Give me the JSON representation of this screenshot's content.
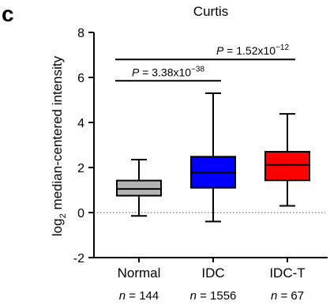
{
  "panel_label": "c",
  "chart_data": {
    "type": "box",
    "title": "Curtis",
    "ylabel_prefix": "log",
    "ylabel_sub": "2",
    "ylabel_rest": " median-centered intensity",
    "xlabel": "",
    "ylim": [
      -2,
      8
    ],
    "yticks": [
      "-2",
      "0",
      "2",
      "4",
      "6",
      "8"
    ],
    "reference_line": 0,
    "categories": [
      "Normal",
      "IDC",
      "IDC-T"
    ],
    "n_labels": [
      "n = 144",
      "n = 1556",
      "n = 67"
    ],
    "n_prefix": "n",
    "n_values": [
      "144",
      "1556",
      "67"
    ],
    "boxes": [
      {
        "category": "Normal",
        "color": "#b4b4b4",
        "whisker_low": -0.15,
        "q1": 0.75,
        "median": 1.05,
        "q3": 1.42,
        "whisker_high": 2.35
      },
      {
        "category": "IDC",
        "color": "#0000ff",
        "whisker_low": -0.4,
        "q1": 1.1,
        "median": 1.78,
        "q3": 2.48,
        "whisker_high": 5.3
      },
      {
        "category": "IDC-T",
        "color": "#ff0000",
        "whisker_low": 0.3,
        "q1": 1.43,
        "median": 2.12,
        "q3": 2.7,
        "whisker_high": 4.38
      }
    ],
    "comparisons": [
      {
        "groups": [
          "Normal",
          "IDC"
        ],
        "y": 5.85,
        "label_p": "P",
        "label_value": " = 3.38x10",
        "label_exp": "−38"
      },
      {
        "groups": [
          "Normal",
          "IDC-T"
        ],
        "y": 6.8,
        "label_p": "P",
        "label_value": " = 1.52x10",
        "label_exp": "−12"
      }
    ],
    "grid": false,
    "legend": "none"
  }
}
